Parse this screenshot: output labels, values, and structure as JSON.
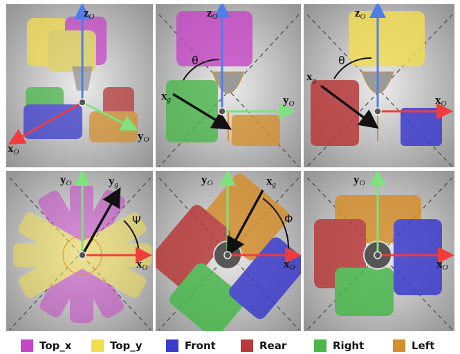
{
  "axis_labels": {
    "z": "z",
    "y": "y",
    "x": "x",
    "subscript_o": "O",
    "xg": "x",
    "yg": "y",
    "subscript_g": "g"
  },
  "angles": {
    "theta": "θ",
    "psi": "Ψ",
    "phi": "Φ"
  },
  "legend": [
    {
      "label": "Top_x",
      "color": "#c646c6"
    },
    {
      "label": "Top_y",
      "color": "#f2dd4e"
    },
    {
      "label": "Front",
      "color": "#3c3ccc"
    },
    {
      "label": "Rear",
      "color": "#b83a3a"
    },
    {
      "label": "Right",
      "color": "#4bb74b"
    },
    {
      "label": "Left",
      "color": "#d48f2e"
    }
  ],
  "colors": {
    "axis_x": "#f03c3c",
    "axis_y": "#7ee27e",
    "axis_z": "#4f7ee8",
    "gripper_axis": "#111111",
    "background_light": "#e3e3e3",
    "background_dark": "#8a8a8a"
  }
}
